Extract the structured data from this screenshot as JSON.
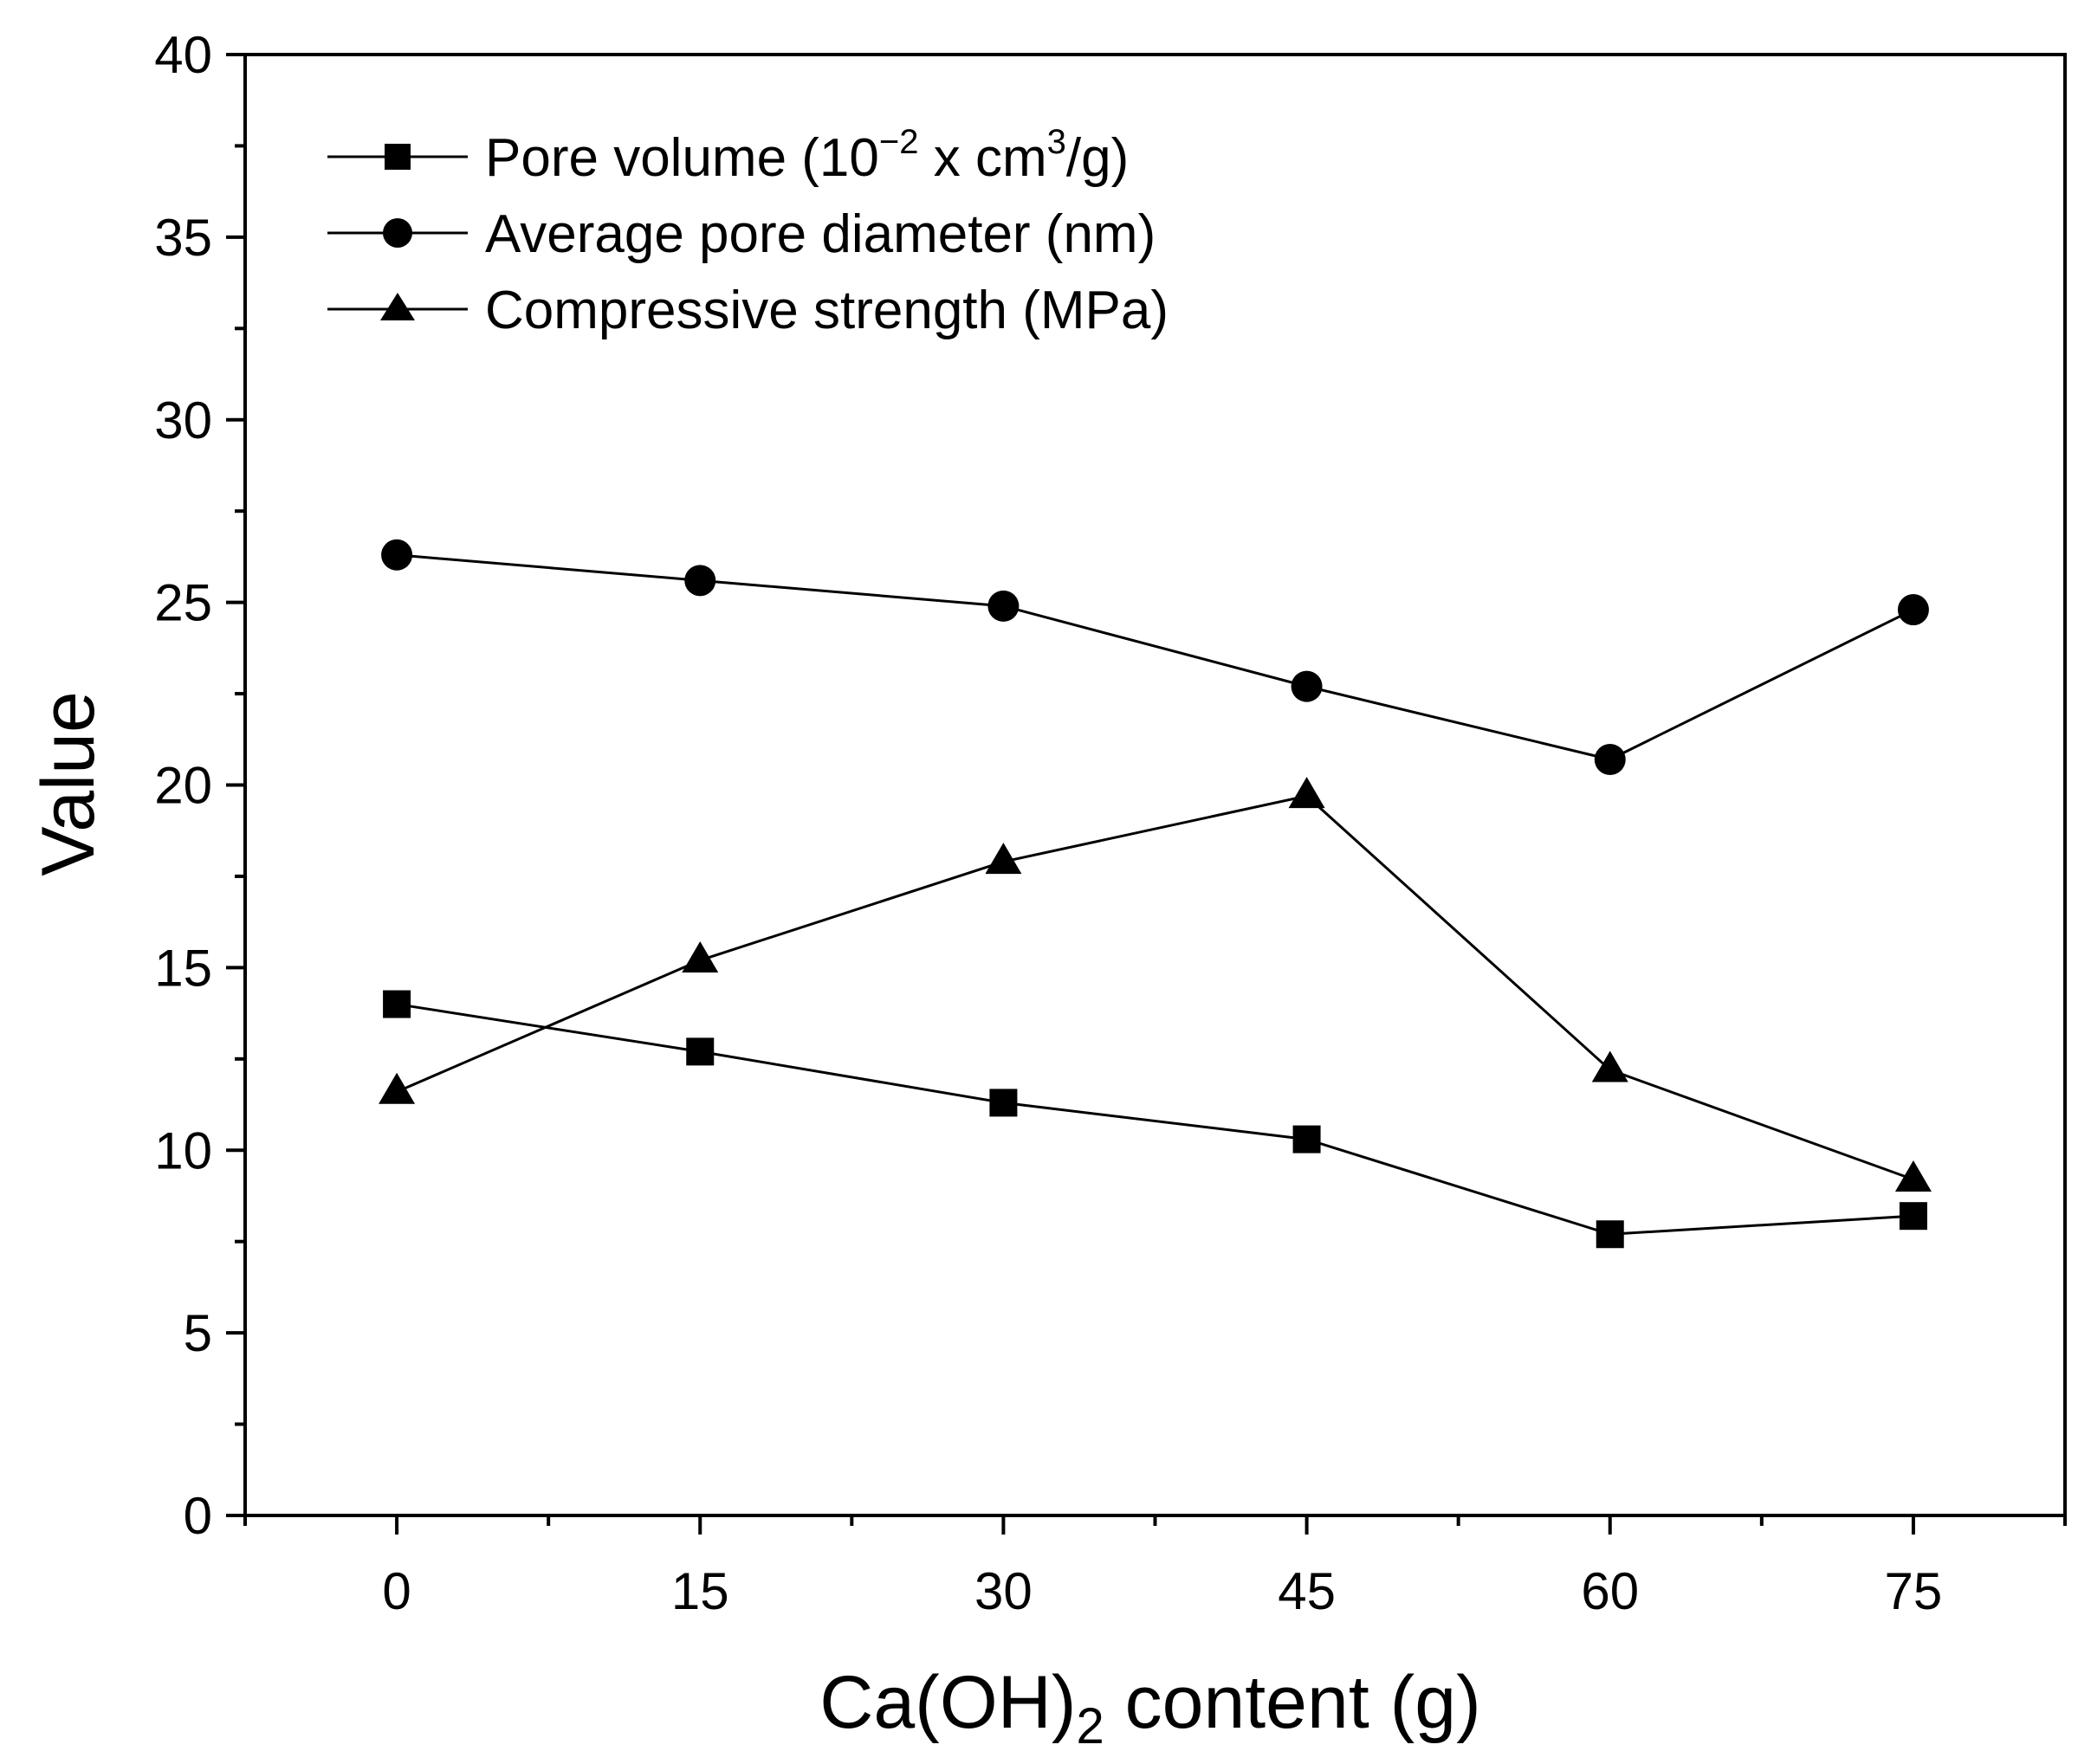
{
  "chart_data": {
    "type": "line",
    "title": "",
    "xlabel": {
      "main": "Ca(OH)",
      "subscript": "2",
      "rest": " content (g)"
    },
    "ylabel": "Value",
    "x": [
      0,
      15,
      30,
      45,
      60,
      75
    ],
    "xlim": [
      -7.5,
      82.5
    ],
    "ylim": [
      0,
      40
    ],
    "x_ticks": [
      "0",
      "15",
      "30",
      "45",
      "60",
      "75"
    ],
    "y_ticks": [
      "0",
      "5",
      "10",
      "15",
      "20",
      "25",
      "30",
      "35",
      "40"
    ],
    "grid": false,
    "legend_position": "top-left",
    "series": [
      {
        "name": "Pore volume",
        "marker": "square",
        "values": [
          14.0,
          12.7,
          11.3,
          10.3,
          7.7,
          8.2
        ],
        "legend": {
          "prefix": "Pore volume (10",
          "sup1": "−2",
          "middle": " x cm",
          "sup2": "3",
          "suffix": "/g)"
        }
      },
      {
        "name": "Average pore diameter (nm)",
        "marker": "circle",
        "values": [
          26.3,
          25.6,
          24.9,
          22.7,
          20.7,
          24.8
        ],
        "legend": {
          "label": "Average pore diameter (nm)"
        }
      },
      {
        "name": "Compressive strength (MPa)",
        "marker": "triangle",
        "values": [
          11.6,
          15.2,
          17.9,
          19.7,
          12.2,
          9.2
        ],
        "legend": {
          "label": "Compressive strength (MPa)"
        }
      }
    ],
    "colors": {
      "line": "#000000",
      "marker": "#000000",
      "background": "#ffffff"
    }
  }
}
